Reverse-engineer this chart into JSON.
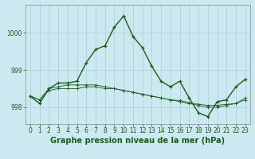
{
  "title": "Graphe pression niveau de la mer (hPa)",
  "background_color": "#cce8f0",
  "grid_color": "#aaccd8",
  "line_color": "#1a5c1a",
  "x_labels": [
    "0",
    "1",
    "2",
    "3",
    "4",
    "5",
    "6",
    "7",
    "8",
    "9",
    "10",
    "11",
    "12",
    "13",
    "14",
    "15",
    "16",
    "17",
    "18",
    "19",
    "20",
    "21",
    "22",
    "23"
  ],
  "main_y": [
    998.3,
    998.1,
    998.5,
    998.65,
    998.65,
    998.7,
    999.2,
    999.55,
    999.65,
    1000.15,
    1000.45,
    999.9,
    999.6,
    999.1,
    998.7,
    998.55,
    998.7,
    998.25,
    997.85,
    997.75,
    998.15,
    998.2,
    998.55,
    998.75
  ],
  "line2_y": [
    998.3,
    998.2,
    998.45,
    998.5,
    998.5,
    998.5,
    998.55,
    998.55,
    998.5,
    998.5,
    998.45,
    998.4,
    998.35,
    998.3,
    998.25,
    998.2,
    998.15,
    998.1,
    998.05,
    998.0,
    998.0,
    998.05,
    998.1,
    998.2
  ],
  "line3_y": [
    998.3,
    998.2,
    998.5,
    998.55,
    998.6,
    998.6,
    998.6,
    998.6,
    998.55,
    998.5,
    998.45,
    998.4,
    998.35,
    998.3,
    998.25,
    998.2,
    998.18,
    998.12,
    998.08,
    998.05,
    998.05,
    998.08,
    998.1,
    998.25
  ],
  "ylim": [
    997.55,
    1000.75
  ],
  "yticks": [
    998,
    999,
    1000
  ],
  "title_fontsize": 7,
  "tick_fontsize": 5.5,
  "figwidth": 3.2,
  "figheight": 2.0,
  "dpi": 100
}
